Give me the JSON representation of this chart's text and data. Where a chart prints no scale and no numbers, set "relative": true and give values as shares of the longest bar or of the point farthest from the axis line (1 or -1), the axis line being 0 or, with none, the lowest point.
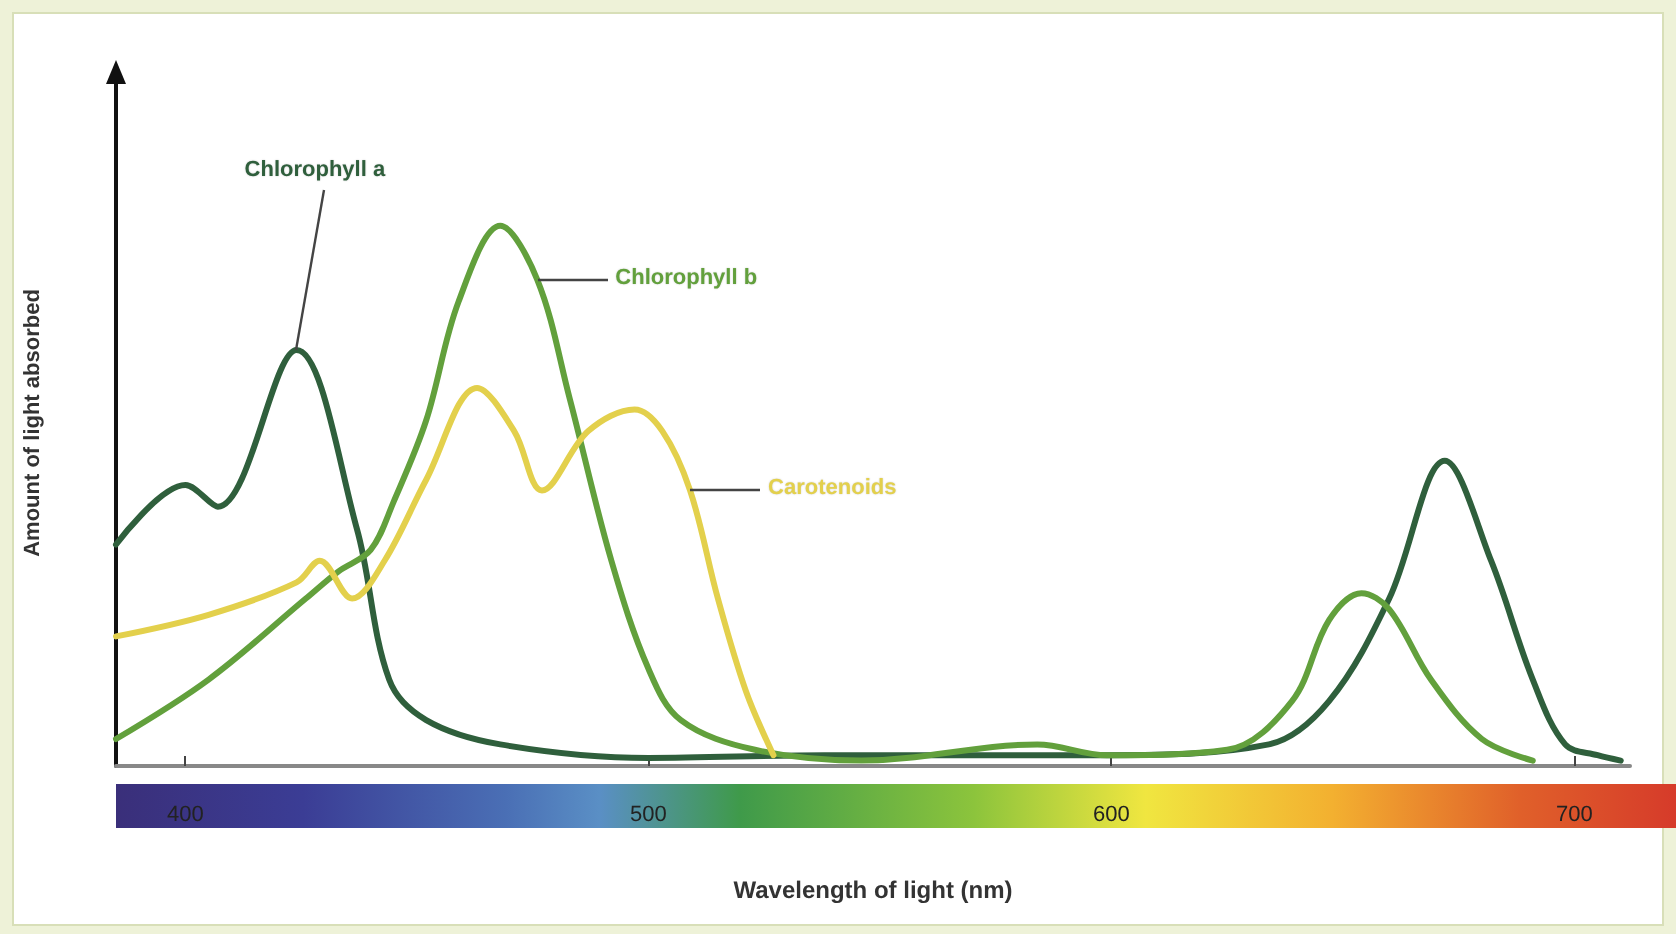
{
  "chart_data": {
    "type": "line",
    "relative": true,
    "xlabel": "Wavelength of light (nm)",
    "ylabel": "Amount of light absorbed",
    "xlim": [
      385,
      712
    ],
    "xticks": [
      400,
      500,
      600,
      700
    ],
    "grid": false,
    "legend": false,
    "marker": "none",
    "line_style": "solid",
    "series": [
      {
        "name": "Chlorophyll a",
        "color": "#2f5f3c",
        "x": [
          385,
          400,
          407,
          424,
          437,
          444,
          452,
          468,
          500,
          538,
          576,
          599,
          634,
          647,
          660,
          672,
          682,
          691,
          698,
          705,
          710
        ],
        "values": [
          0.41,
          0.52,
          0.48,
          0.77,
          0.44,
          0.16,
          0.085,
          0.04,
          0.015,
          0.02,
          0.02,
          0.02,
          0.04,
          0.12,
          0.31,
          0.565,
          0.38,
          0.16,
          0.04,
          0.02,
          0.01
        ]
      },
      {
        "name": "Chlorophyll b",
        "color": "#62a03c",
        "x": [
          385,
          405,
          426,
          433,
          440,
          445,
          452,
          459,
          468,
          476,
          483,
          492,
          500,
          507,
          523,
          546,
          584,
          599,
          625,
          639,
          647,
          654,
          660,
          669,
          680,
          691
        ],
        "values": [
          0.05,
          0.16,
          0.31,
          0.36,
          0.4,
          0.49,
          0.64,
          0.86,
          1.0,
          0.9,
          0.68,
          0.38,
          0.18,
          0.085,
          0.03,
          0.01,
          0.04,
          0.02,
          0.03,
          0.12,
          0.27,
          0.32,
          0.29,
          0.16,
          0.05,
          0.01
        ]
      },
      {
        "name": "Carotenoids",
        "color": "#e3d04c",
        "x": [
          385,
          405,
          424,
          429,
          436,
          443,
          452,
          463,
          471,
          477,
          487,
          497,
          503,
          509,
          515,
          521,
          527
        ],
        "values": [
          0.24,
          0.28,
          0.34,
          0.38,
          0.31,
          0.38,
          0.53,
          0.7,
          0.62,
          0.51,
          0.62,
          0.66,
          0.62,
          0.51,
          0.31,
          0.14,
          0.02
        ]
      }
    ]
  }
}
